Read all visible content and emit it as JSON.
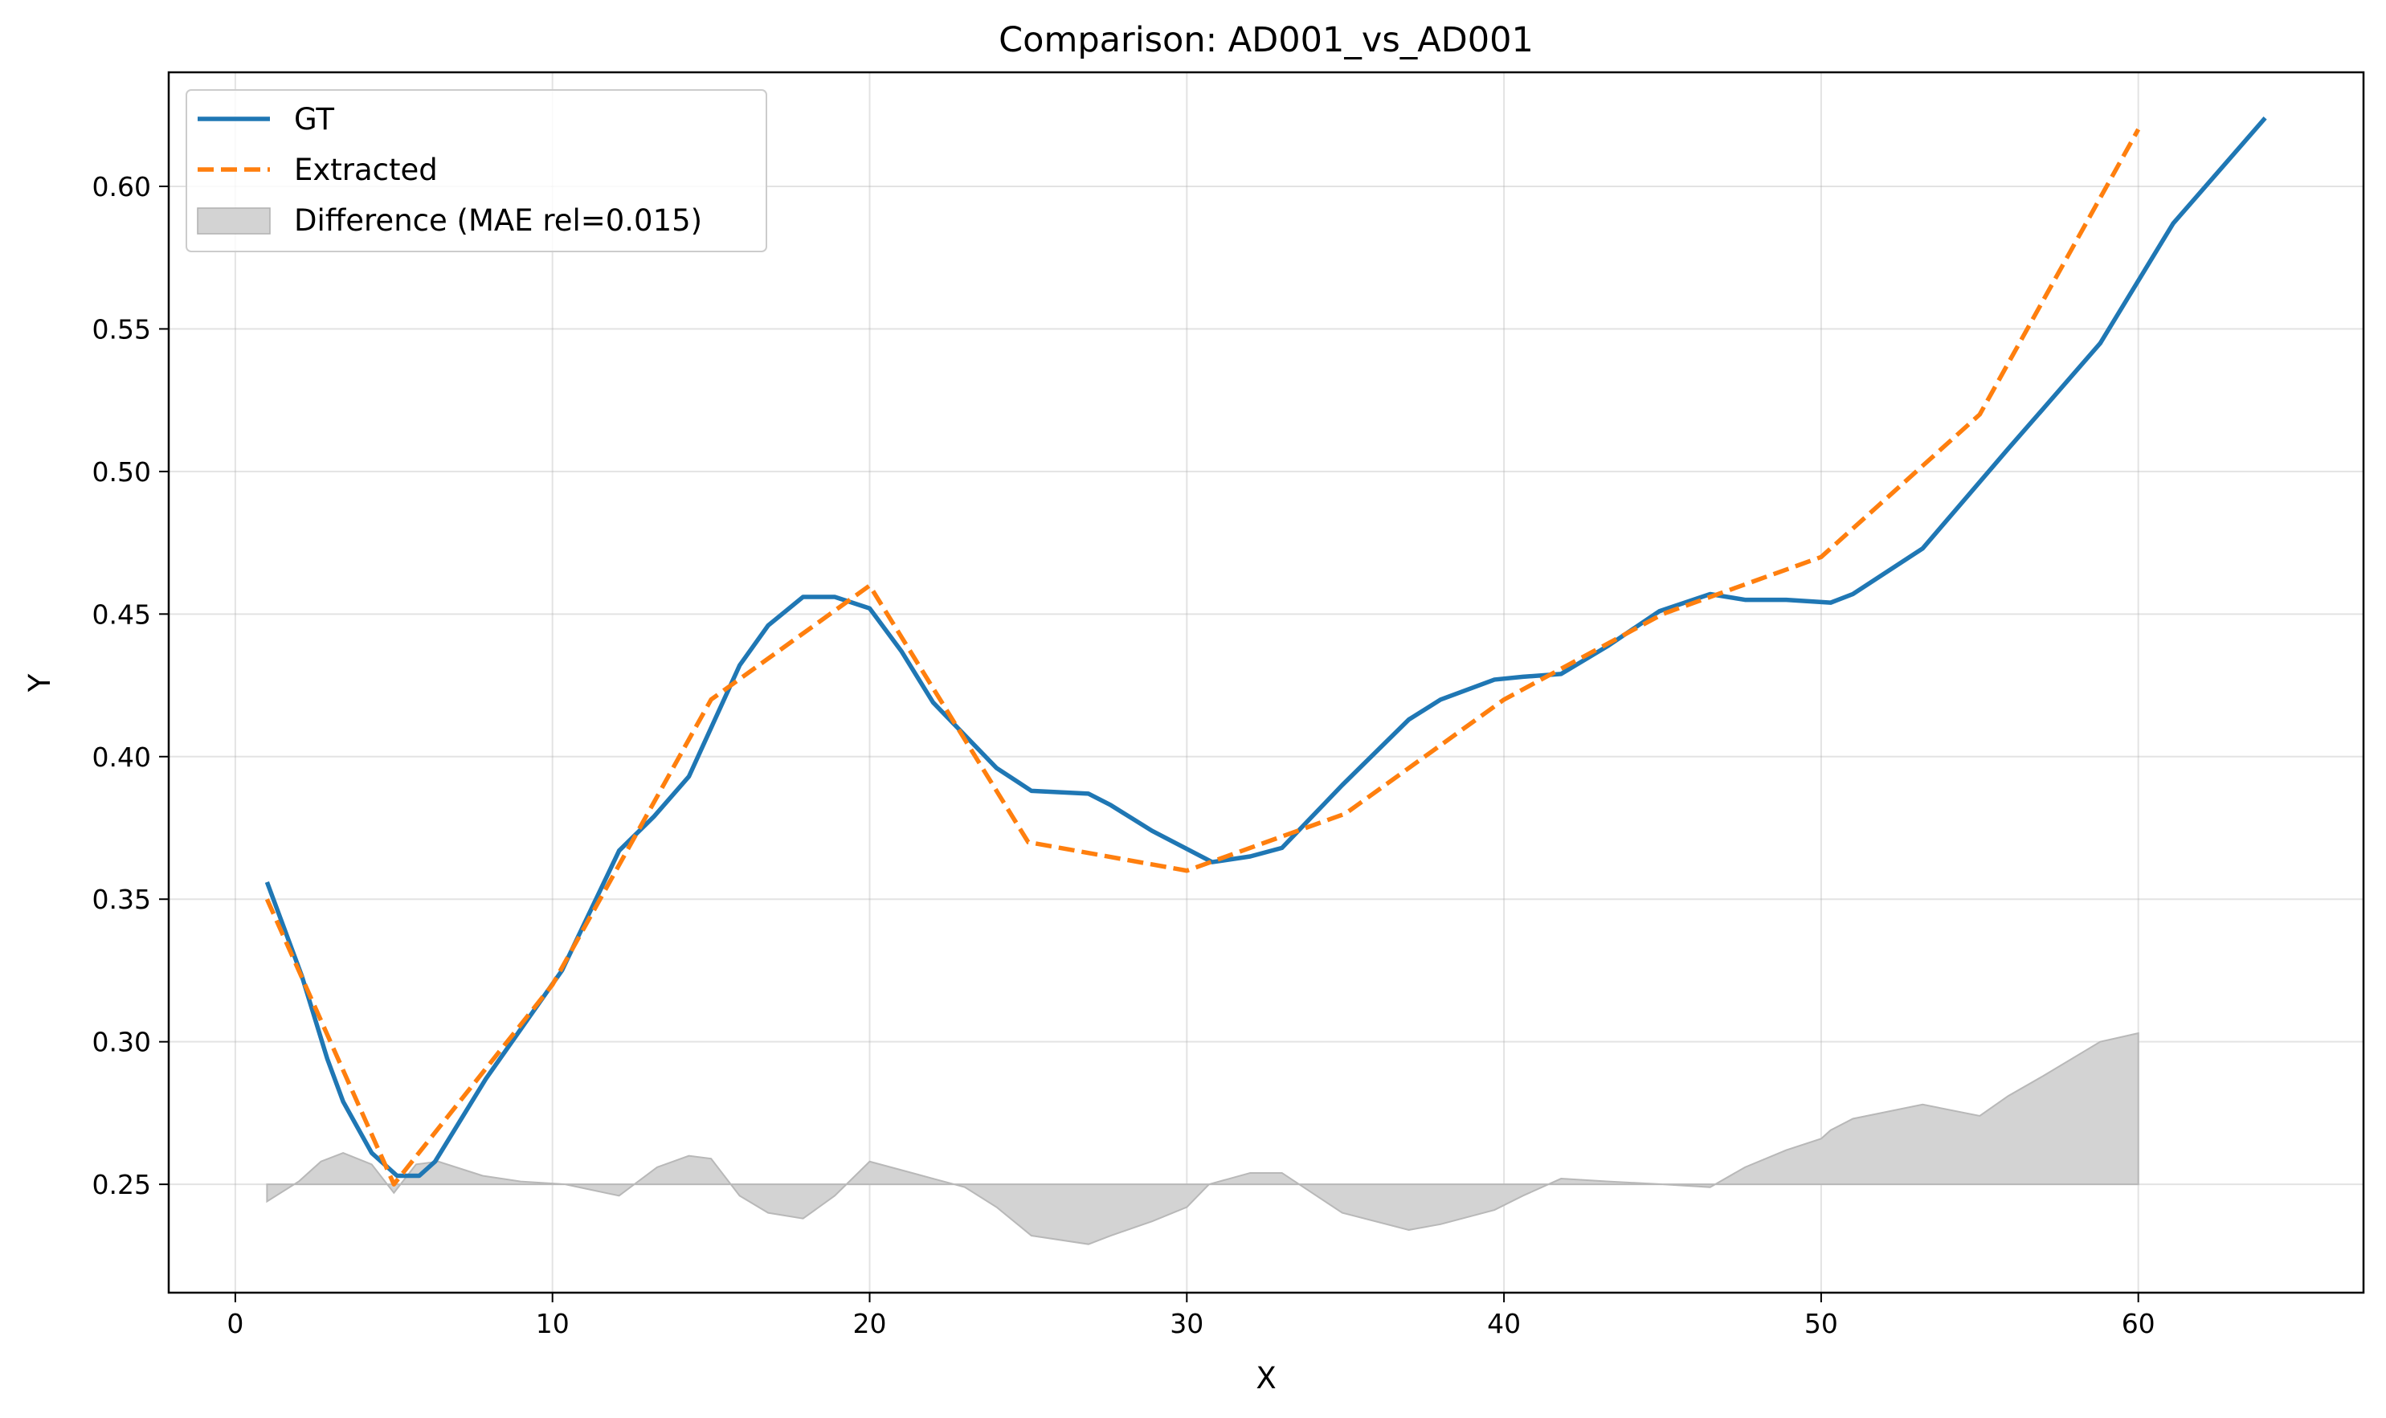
{
  "chart_data": {
    "type": "line",
    "title": "Comparison: AD001_vs_AD001",
    "xlabel": "X",
    "ylabel": "Y",
    "xlim": [
      -2.1,
      67.1
    ],
    "ylim": [
      0.212,
      0.64
    ],
    "xticks": [
      0,
      10,
      20,
      30,
      40,
      50,
      60
    ],
    "xtick_labels": [
      "0",
      "10",
      "20",
      "30",
      "40",
      "50",
      "60"
    ],
    "yticks": [
      0.25,
      0.3,
      0.35,
      0.4,
      0.45,
      0.5,
      0.55,
      0.6
    ],
    "ytick_labels": [
      "0.25",
      "0.30",
      "0.35",
      "0.40",
      "0.45",
      "0.50",
      "0.55",
      "0.60"
    ],
    "grid": true,
    "legend_position": "top-left",
    "difference_baseline": 0.25,
    "series": [
      {
        "name": "GT",
        "color": "#1f77b4",
        "style": "solid",
        "x": [
          1,
          2.1,
          2.9,
          3.4,
          4.3,
          5.1,
          5.8,
          6.3,
          7.9,
          9.1,
          10.3,
          12.1,
          13.2,
          14.3,
          15.9,
          16.8,
          17.9,
          18.9,
          20.0,
          21.0,
          22.0,
          24.0,
          25.1,
          26.9,
          27.6,
          28.9,
          30.8,
          32.0,
          33.0,
          34.9,
          37.0,
          38.0,
          39.7,
          40.6,
          41.8,
          43.3,
          44.9,
          46.5,
          47.6,
          48.9,
          50.3,
          51.0,
          53.2,
          55.9,
          57.0,
          58.8,
          61.1,
          64.0
        ],
        "y": [
          0.356,
          0.323,
          0.294,
          0.279,
          0.261,
          0.253,
          0.253,
          0.258,
          0.287,
          0.306,
          0.325,
          0.367,
          0.379,
          0.393,
          0.432,
          0.446,
          0.456,
          0.456,
          0.452,
          0.437,
          0.419,
          0.396,
          0.388,
          0.387,
          0.383,
          0.374,
          0.363,
          0.365,
          0.368,
          0.39,
          0.413,
          0.42,
          0.427,
          0.428,
          0.429,
          0.439,
          0.451,
          0.457,
          0.455,
          0.455,
          0.454,
          0.457,
          0.473,
          0.508,
          0.522,
          0.545,
          0.587,
          0.624
        ]
      },
      {
        "name": "Extracted",
        "color": "#ff7f0e",
        "style": "dashed",
        "x": [
          1,
          5,
          10,
          15,
          20,
          25,
          30,
          35,
          40,
          45,
          50,
          55,
          60
        ],
        "y": [
          0.35,
          0.25,
          0.32,
          0.42,
          0.46,
          0.37,
          0.36,
          0.38,
          0.42,
          0.45,
          0.47,
          0.52,
          0.62
        ]
      },
      {
        "name": "Difference (MAE rel=0.015)",
        "color": "#d3d3d3",
        "style": "area",
        "x": [
          1,
          2.0,
          2.7,
          3.4,
          4.3,
          5.0,
          5.7,
          6.4,
          7.8,
          9.0,
          10.4,
          12.1,
          13.3,
          14.3,
          15.0,
          15.9,
          16.8,
          17.9,
          18.9,
          20.0,
          21.0,
          22.0,
          23.0,
          24.0,
          25.1,
          26.9,
          27.6,
          28.9,
          30.0,
          30.7,
          32.0,
          33.0,
          34.9,
          37.0,
          38.0,
          39.7,
          40.6,
          41.8,
          43.3,
          45.0,
          46.5,
          47.6,
          48.9,
          50.0,
          50.3,
          51.0,
          53.2,
          55.0,
          55.9,
          57.0,
          58.8,
          60.0
        ],
        "y": [
          0.244,
          0.251,
          0.258,
          0.261,
          0.257,
          0.247,
          0.257,
          0.258,
          0.253,
          0.251,
          0.25,
          0.246,
          0.256,
          0.26,
          0.259,
          0.246,
          0.24,
          0.238,
          0.246,
          0.258,
          0.255,
          0.252,
          0.249,
          0.242,
          0.232,
          0.229,
          0.232,
          0.237,
          0.242,
          0.25,
          0.254,
          0.254,
          0.24,
          0.234,
          0.236,
          0.241,
          0.246,
          0.252,
          0.251,
          0.25,
          0.249,
          0.256,
          0.262,
          0.266,
          0.269,
          0.273,
          0.278,
          0.274,
          0.281,
          0.288,
          0.3,
          0.303
        ]
      }
    ]
  }
}
